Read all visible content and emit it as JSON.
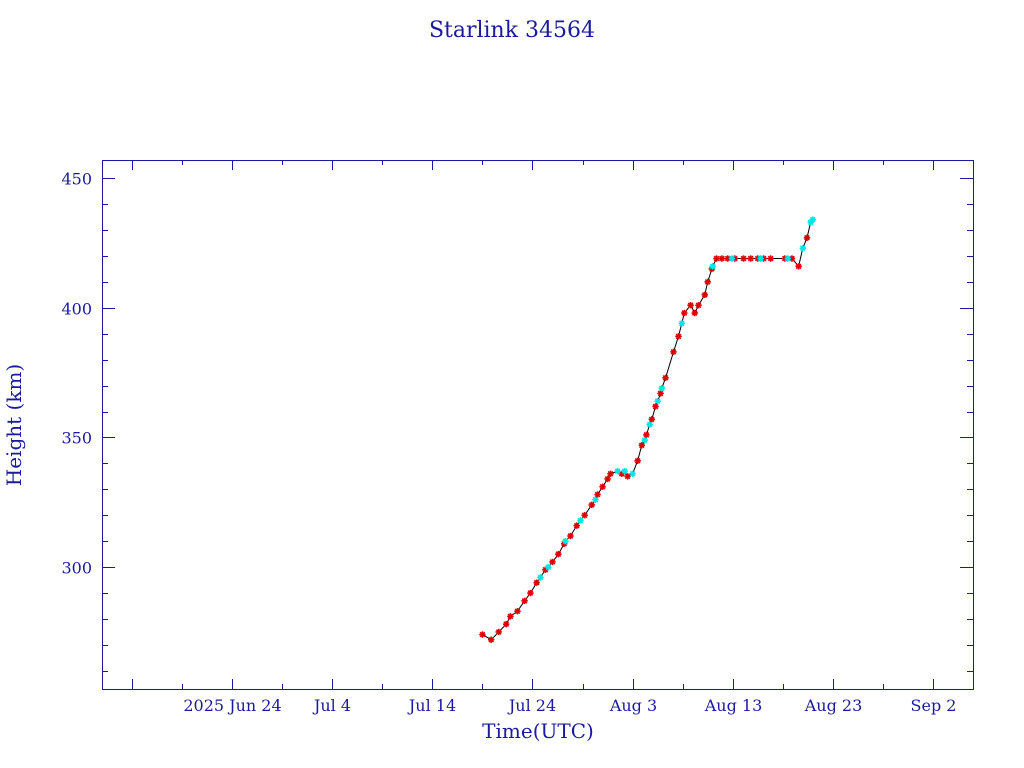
{
  "colors": {
    "axis": "#1a1aa0",
    "line": "#000000",
    "marker_primary": "#e00000",
    "marker_secondary": "#00e5e5"
  },
  "chart_data": {
    "type": "scatter",
    "title": "Starlink 34564",
    "xlabel": "Time(UTC)",
    "ylabel": "Height (km)",
    "x_range": [
      "2025-06-11",
      "2025-09-06"
    ],
    "ylim": [
      253,
      457
    ],
    "y_ticks": [
      300,
      350,
      400,
      450
    ],
    "x_ticks": [
      {
        "date": "2025-06-14",
        "label": ""
      },
      {
        "date": "2025-06-24",
        "label": "2025 Jun 24"
      },
      {
        "date": "2025-07-04",
        "label": "Jul  4"
      },
      {
        "date": "2025-07-14",
        "label": "Jul 14"
      },
      {
        "date": "2025-07-24",
        "label": "Jul 24"
      },
      {
        "date": "2025-08-03",
        "label": "Aug  3"
      },
      {
        "date": "2025-08-13",
        "label": "Aug 13"
      },
      {
        "date": "2025-08-23",
        "label": "Aug 23"
      },
      {
        "date": "2025-09-02",
        "label": "Sep  2"
      }
    ],
    "grid": false,
    "legend": "none",
    "series": [
      {
        "marker": "asterisk",
        "color": "#e00000",
        "points": [
          [
            "2025-07-19 00:00",
            274
          ],
          [
            "2025-07-19 21:00",
            272
          ],
          [
            "2025-07-20 15:00",
            275
          ],
          [
            "2025-07-21 09:00",
            278
          ],
          [
            "2025-07-21 19:00",
            281
          ],
          [
            "2025-07-22 12:00",
            283
          ],
          [
            "2025-07-23 05:00",
            287
          ],
          [
            "2025-07-23 19:00",
            290
          ],
          [
            "2025-07-24 10:00",
            294
          ],
          [
            "2025-07-25 07:00",
            299
          ],
          [
            "2025-07-26 00:00",
            302
          ],
          [
            "2025-07-26 14:00",
            305
          ],
          [
            "2025-07-27 04:00",
            309
          ],
          [
            "2025-07-27 19:00",
            312
          ],
          [
            "2025-07-28 10:00",
            316
          ],
          [
            "2025-07-29 05:00",
            320
          ],
          [
            "2025-07-29 22:00",
            324
          ],
          [
            "2025-07-30 12:00",
            328
          ],
          [
            "2025-07-31 00:00",
            331
          ],
          [
            "2025-07-31 12:00",
            334
          ],
          [
            "2025-07-31 19:00",
            336
          ],
          [
            "2025-08-01 22:00",
            336
          ],
          [
            "2025-08-02 12:00",
            335
          ],
          [
            "2025-08-03 12:00",
            341
          ],
          [
            "2025-08-03 22:00",
            347
          ],
          [
            "2025-08-04 09:00",
            351
          ],
          [
            "2025-08-04 22:00",
            357
          ],
          [
            "2025-08-05 07:00",
            362
          ],
          [
            "2025-08-05 19:00",
            367
          ],
          [
            "2025-08-06 07:00",
            373
          ],
          [
            "2025-08-07 02:00",
            383
          ],
          [
            "2025-08-07 14:00",
            389
          ],
          [
            "2025-08-08 04:00",
            398
          ],
          [
            "2025-08-08 19:00",
            401
          ],
          [
            "2025-08-09 05:00",
            398
          ],
          [
            "2025-08-09 14:00",
            401
          ],
          [
            "2025-08-10 05:00",
            405
          ],
          [
            "2025-08-10 12:00",
            410
          ],
          [
            "2025-08-10 22:00",
            415
          ],
          [
            "2025-08-11 09:00",
            419
          ],
          [
            "2025-08-11 22:00",
            419
          ],
          [
            "2025-08-12 12:00",
            419
          ],
          [
            "2025-08-13 05:00",
            419
          ],
          [
            "2025-08-14 02:00",
            419
          ],
          [
            "2025-08-14 19:00",
            419
          ],
          [
            "2025-08-15 12:00",
            419
          ],
          [
            "2025-08-16 02:00",
            419
          ],
          [
            "2025-08-16 19:00",
            419
          ],
          [
            "2025-08-18 05:00",
            419
          ],
          [
            "2025-08-18 22:00",
            419
          ],
          [
            "2025-08-19 14:00",
            416
          ],
          [
            "2025-08-20 10:00",
            427
          ]
        ]
      },
      {
        "marker": "asterisk",
        "color": "#00e5e5",
        "points": [
          [
            "2025-07-24 19:00",
            296
          ],
          [
            "2025-07-25 14:00",
            300
          ],
          [
            "2025-07-27 07:00",
            310
          ],
          [
            "2025-07-28 19:00",
            318
          ],
          [
            "2025-07-30 07:00",
            326
          ],
          [
            "2025-08-01 12:00",
            337
          ],
          [
            "2025-08-02 05:00",
            337
          ],
          [
            "2025-08-03 00:00",
            336
          ],
          [
            "2025-08-04 05:00",
            349
          ],
          [
            "2025-08-04 17:00",
            355
          ],
          [
            "2025-08-05 12:00",
            364
          ],
          [
            "2025-08-05 22:00",
            369
          ],
          [
            "2025-08-07 22:00",
            394
          ],
          [
            "2025-08-11 00:00",
            416
          ],
          [
            "2025-08-12 22:00",
            419
          ],
          [
            "2025-08-15 19:00",
            419
          ],
          [
            "2025-08-18 12:00",
            419
          ],
          [
            "2025-08-20 00:00",
            423
          ],
          [
            "2025-08-20 19:00",
            433
          ],
          [
            "2025-08-21 00:00",
            434
          ]
        ]
      }
    ]
  }
}
